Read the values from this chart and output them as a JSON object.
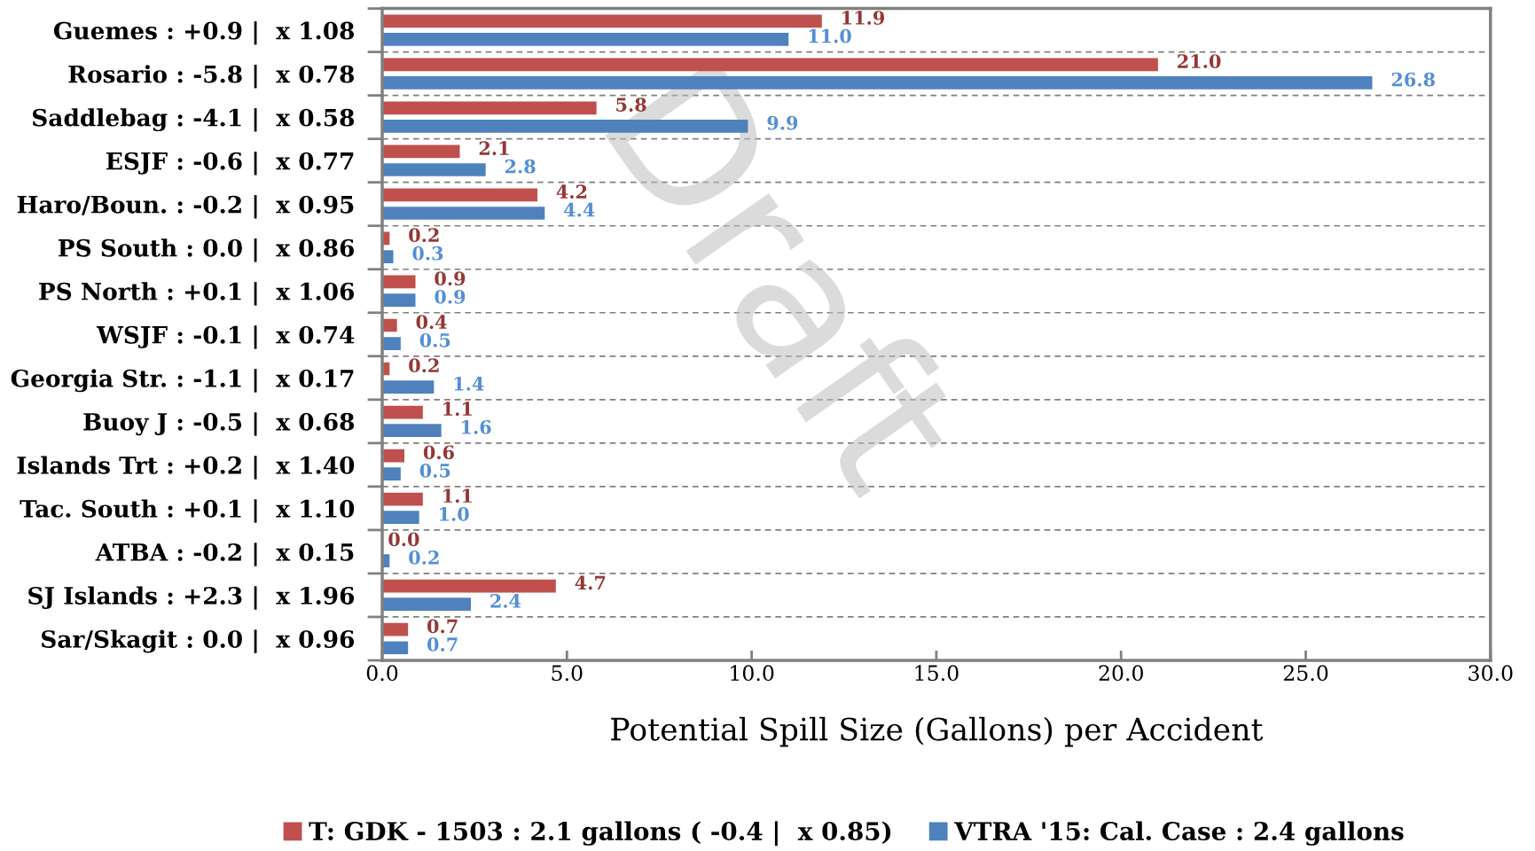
{
  "chart_data": {
    "type": "bar",
    "orientation": "horizontal",
    "categories": [
      "Guemes : +0.9 |  x 1.08",
      "Rosario : -5.8 |  x 0.78",
      "Saddlebag : -4.1 |  x 0.58",
      "ESJF : -0.6 |  x 0.77",
      "Haro/Boun. : -0.2 |  x 0.95",
      "PS South : 0.0 |  x 0.86",
      "PS North : +0.1 |  x 1.06",
      "WSJF : -0.1 |  x 0.74",
      "Georgia Str. : -1.1 |  x 0.17",
      "Buoy J : -0.5 |  x 0.68",
      "Islands Trt : +0.2 |  x 1.40",
      "Tac. South : +0.1 |  x 1.10",
      "ATBA : -0.2 |  x 0.15",
      "SJ Islands : +2.3 |  x 1.96",
      "Sar/Skagit : 0.0 |  x 0.96"
    ],
    "series": [
      {
        "name": "T: GDK - 1503 : 2.1 gallons ( -0.4 |  x 0.85)",
        "color": "#c0504d",
        "values": [
          11.9,
          21.0,
          5.8,
          2.1,
          4.2,
          0.2,
          0.9,
          0.4,
          0.2,
          1.1,
          0.6,
          1.1,
          0.0,
          4.7,
          0.7
        ],
        "value_labels": [
          "11.9",
          "21.0",
          "5.8",
          "2.1",
          "4.2",
          "0.2",
          "0.9",
          "0.4",
          "0.2",
          "1.1",
          "0.6",
          "1.1",
          "0.0",
          "4.7",
          "0.7"
        ]
      },
      {
        "name": "VTRA '15: Cal. Case : 2.4 gallons",
        "color": "#4f81bd",
        "values": [
          11.0,
          26.8,
          9.9,
          2.8,
          4.4,
          0.3,
          0.9,
          0.5,
          1.4,
          1.6,
          0.5,
          1.0,
          0.2,
          2.4,
          0.7
        ],
        "value_labels": [
          "11.0",
          "26.8",
          "9.9",
          "2.8",
          "4.4",
          "0.3",
          "0.9",
          "0.5",
          "1.4",
          "1.6",
          "0.5",
          "1.0",
          "0.2",
          "2.4",
          "0.7"
        ]
      }
    ],
    "xlabel": "Potential Spill Size (Gallons) per Accident",
    "xlim": [
      0,
      30
    ],
    "xticks": [
      {
        "value": 0,
        "label": "0.0"
      },
      {
        "value": 5,
        "label": "5.0"
      },
      {
        "value": 10,
        "label": "10.0"
      },
      {
        "value": 15,
        "label": "15.0"
      },
      {
        "value": 20,
        "label": "20.0"
      },
      {
        "value": 25,
        "label": "25.0"
      },
      {
        "value": 30,
        "label": "30.0"
      }
    ],
    "grid": "y",
    "legend": "bottom",
    "annotations": [
      "Draft"
    ]
  }
}
